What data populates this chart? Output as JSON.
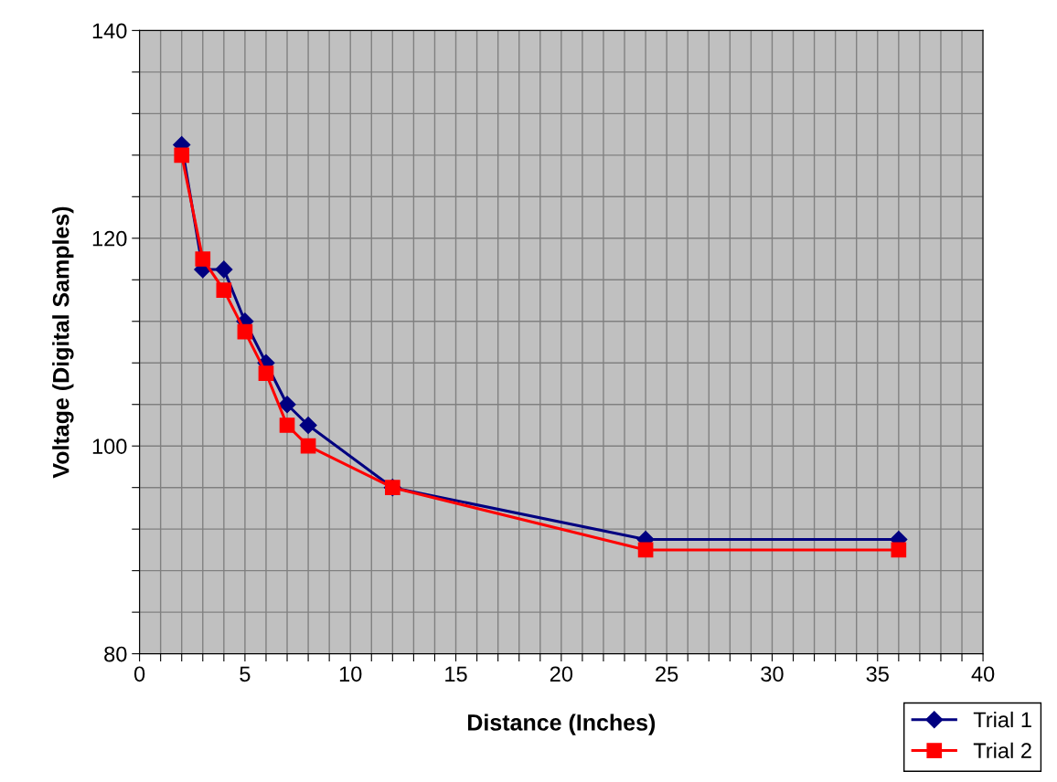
{
  "chart_data": {
    "type": "line",
    "xlabel": "Distance (Inches)",
    "ylabel": "Voltage (Digital Samples)",
    "xlim": [
      0,
      40
    ],
    "ylim": [
      80,
      140
    ],
    "xticks": [
      0,
      {
        "value": 1,
        "label": null
      },
      {
        "value": 2,
        "label": null
      },
      {
        "value": 3,
        "label": null
      },
      {
        "value": 4,
        "label": null
      },
      5,
      {
        "value": 6,
        "label": null
      },
      {
        "value": 7,
        "label": null
      },
      {
        "value": 8,
        "label": null
      },
      {
        "value": 9,
        "label": null
      },
      10,
      {
        "value": 11,
        "label": null
      },
      {
        "value": 12,
        "label": null
      },
      {
        "value": 13,
        "label": null
      },
      {
        "value": 14,
        "label": null
      },
      15,
      {
        "value": 16,
        "label": null
      },
      {
        "value": 17,
        "label": null
      },
      {
        "value": 18,
        "label": null
      },
      {
        "value": 19,
        "label": null
      },
      20,
      {
        "value": 21,
        "label": null
      },
      {
        "value": 22,
        "label": null
      },
      {
        "value": 23,
        "label": null
      },
      {
        "value": 24,
        "label": null
      },
      25,
      {
        "value": 26,
        "label": null
      },
      {
        "value": 27,
        "label": null
      },
      {
        "value": 28,
        "label": null
      },
      {
        "value": 29,
        "label": null
      },
      30,
      {
        "value": 31,
        "label": null
      },
      {
        "value": 32,
        "label": null
      },
      {
        "value": 33,
        "label": null
      },
      {
        "value": 34,
        "label": null
      },
      35,
      {
        "value": 36,
        "label": null
      },
      {
        "value": 37,
        "label": null
      },
      {
        "value": 38,
        "label": null
      },
      {
        "value": 39,
        "label": null
      },
      40
    ],
    "yticks": [
      80,
      {
        "value": 84,
        "label": null
      },
      {
        "value": 88,
        "label": null
      },
      {
        "value": 92,
        "label": null
      },
      {
        "value": 96,
        "label": null
      },
      100,
      {
        "value": 104,
        "label": null
      },
      {
        "value": 108,
        "label": null
      },
      {
        "value": 112,
        "label": null
      },
      {
        "value": 116,
        "label": null
      },
      120,
      {
        "value": 124,
        "label": null
      },
      {
        "value": 128,
        "label": null
      },
      {
        "value": 132,
        "label": null
      },
      {
        "value": 136,
        "label": null
      },
      140
    ],
    "grid": true,
    "legend": "bottom right",
    "series": [
      {
        "name": "Trial 1",
        "color": "#000080",
        "marker": "diamond",
        "x": [
          2,
          3,
          4,
          5,
          6,
          7,
          8,
          12,
          24,
          36
        ],
        "values": [
          129,
          117,
          117,
          112,
          108,
          104,
          102,
          96,
          91,
          91
        ]
      },
      {
        "name": "Trial 2",
        "color": "#ff0000",
        "marker": "square",
        "x": [
          2,
          3,
          4,
          5,
          6,
          7,
          8,
          12,
          24,
          36
        ],
        "values": [
          128,
          118,
          115,
          111,
          107,
          102,
          100,
          96,
          90,
          90
        ]
      }
    ]
  }
}
